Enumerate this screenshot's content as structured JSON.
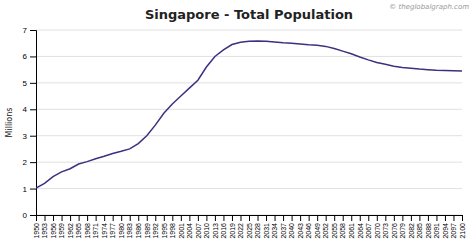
{
  "chart_data": {
    "type": "line",
    "title": "Singapore - Total Population",
    "ylabel": "Millions",
    "annotations": [
      "© theglobalgraph.com"
    ],
    "color": "#3d3080",
    "x": [
      1950,
      1953,
      1956,
      1959,
      1962,
      1965,
      1968,
      1971,
      1974,
      1977,
      1980,
      1983,
      1986,
      1989,
      1992,
      1995,
      1998,
      2001,
      2004,
      2007,
      2010,
      2013,
      2016,
      2019,
      2022,
      2025,
      2028,
      2031,
      2034,
      2037,
      2040,
      2043,
      2046,
      2049,
      2052,
      2055,
      2058,
      2061,
      2064,
      2067,
      2070,
      2073,
      2076,
      2079,
      2082,
      2085,
      2088,
      2091,
      2094,
      2097,
      2100
    ],
    "values": [
      1.02,
      1.2,
      1.45,
      1.63,
      1.75,
      1.93,
      2.02,
      2.13,
      2.22,
      2.33,
      2.41,
      2.5,
      2.7,
      3.0,
      3.4,
      3.85,
      4.2,
      4.5,
      4.8,
      5.1,
      5.6,
      6.0,
      6.25,
      6.45,
      6.54,
      6.57,
      6.58,
      6.57,
      6.55,
      6.52,
      6.5,
      6.47,
      6.44,
      6.42,
      6.38,
      6.3,
      6.2,
      6.1,
      5.98,
      5.87,
      5.77,
      5.7,
      5.63,
      5.58,
      5.55,
      5.52,
      5.5,
      5.48,
      5.47,
      5.46,
      5.45
    ],
    "xlim": [
      1950,
      2100
    ],
    "xticks": [
      1950,
      1953,
      1956,
      1959,
      1962,
      1965,
      1968,
      1971,
      1974,
      1977,
      1980,
      1983,
      1986,
      1989,
      1992,
      1995,
      1998,
      2001,
      2004,
      2007,
      2010,
      2013,
      2016,
      2019,
      2022,
      2025,
      2028,
      2031,
      2034,
      2037,
      2040,
      2043,
      2046,
      2049,
      2052,
      2055,
      2058,
      2061,
      2064,
      2067,
      2070,
      2073,
      2076,
      2079,
      2082,
      2085,
      2088,
      2091,
      2094,
      2097,
      2100
    ],
    "ylim": [
      0,
      7
    ],
    "yticks": [
      0,
      1,
      2,
      3,
      4,
      5,
      6,
      7
    ],
    "grid": true
  }
}
